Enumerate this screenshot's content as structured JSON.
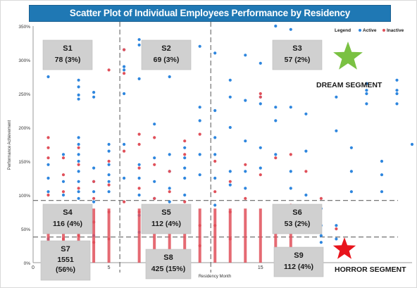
{
  "chart_data": {
    "type": "scatter",
    "title": "Scatter Plot of Individual Employees Performance by Residency",
    "xlabel": "Residency Month",
    "ylabel": "Performance Achievement",
    "xlim": [
      0,
      25
    ],
    "ylim": [
      0,
      3.5
    ],
    "x_ticks": [
      {
        "v": 0,
        "label": "0"
      },
      {
        "v": 5,
        "label": "5"
      },
      {
        "v": 15,
        "label": "15"
      }
    ],
    "y_ticks": [
      {
        "v": 0,
        "label": "0%"
      },
      {
        "v": 0.5,
        "label": "50%"
      },
      {
        "v": 1.0,
        "label": "100%"
      },
      {
        "v": 1.5,
        "label": "150%"
      },
      {
        "v": 2.0,
        "label": "200%"
      },
      {
        "v": 2.5,
        "label": "250%"
      },
      {
        "v": 3.0,
        "label": "300%"
      },
      {
        "v": 3.5,
        "label": "350%"
      }
    ],
    "legend": {
      "title": "Legend",
      "position": "top-right",
      "entries": [
        {
          "name": "Active",
          "color": "#2e86de"
        },
        {
          "name": "Inactive",
          "color": "#e0505a"
        }
      ]
    },
    "grid": false,
    "threshold_lines": {
      "x": [
        6,
        12
      ],
      "y": [
        0.38,
        0.92
      ]
    },
    "segments": [
      {
        "id": "S1",
        "label": "S1",
        "count": "78 (3%)"
      },
      {
        "id": "S2",
        "label": "S2",
        "count": "69 (3%)"
      },
      {
        "id": "S3",
        "label": "S3",
        "count": "57 (2%)"
      },
      {
        "id": "S4",
        "label": "S4",
        "count": "116 (4%)"
      },
      {
        "id": "S5",
        "label": "S5",
        "count": "112 (4%)"
      },
      {
        "id": "S6",
        "label": "S6",
        "count": "53 (2%)"
      },
      {
        "id": "S7",
        "label": "S7",
        "count": "1551 (56%)"
      },
      {
        "id": "S8",
        "label": "S8",
        "count": "425 (15%)"
      },
      {
        "id": "S9",
        "label": "S9",
        "count": "112 (4%)"
      }
    ],
    "annotations": [
      {
        "text": "DREAM SEGMENT",
        "marker": "star",
        "color": "#7ac142"
      },
      {
        "text": "HORROR SEGMENT",
        "marker": "star",
        "color": "#e8141c"
      }
    ],
    "series": [
      {
        "name": "Active",
        "color": "#2e86de",
        "x": [
          1,
          1,
          1,
          1,
          1,
          1,
          1,
          1,
          2,
          2,
          2,
          2,
          2,
          2,
          3,
          3,
          3,
          3,
          3,
          3,
          3,
          3,
          3,
          3,
          3,
          3,
          4,
          4,
          4,
          4,
          4,
          4,
          4,
          4,
          5,
          5,
          5,
          5,
          5,
          5,
          6,
          6,
          6,
          6,
          6,
          6,
          7,
          7,
          7,
          7,
          7,
          7,
          7,
          7,
          8,
          8,
          8,
          8,
          8,
          9,
          9,
          9,
          9,
          9,
          9,
          10,
          10,
          10,
          10,
          10,
          11,
          11,
          11,
          11,
          11,
          12,
          12,
          12,
          12,
          12,
          12,
          13,
          13,
          13,
          13,
          13,
          14,
          14,
          14,
          14,
          14,
          15,
          15,
          15,
          15,
          15,
          16,
          16,
          16,
          16,
          17,
          17,
          17,
          17,
          18,
          18,
          18,
          19,
          19,
          19,
          19,
          20,
          20,
          20,
          20,
          21,
          21,
          21,
          22,
          22,
          22,
          22,
          23,
          23,
          23,
          24,
          24,
          24,
          24,
          25
        ],
        "y": [
          2.75,
          1.45,
          1.25,
          1.05,
          0.8,
          0.6,
          0.35,
          0.2,
          1.6,
          1.2,
          1.0,
          0.7,
          0.45,
          0.25,
          2.7,
          2.6,
          2.48,
          2.42,
          1.85,
          1.75,
          1.6,
          1.5,
          1.35,
          1.2,
          1.05,
          0.95,
          2.52,
          2.45,
          1.4,
          1.2,
          1.05,
          0.9,
          0.6,
          0.4,
          1.75,
          1.65,
          1.45,
          1.3,
          1.2,
          1.05,
          3.15,
          2.9,
          2.85,
          2.5,
          1.75,
          1.25,
          3.3,
          3.22,
          2.72,
          1.45,
          1.25,
          1.0,
          0.7,
          0.45,
          2.05,
          1.55,
          1.2,
          0.95,
          0.7,
          2.75,
          1.6,
          1.35,
          1.1,
          0.9,
          0.6,
          1.7,
          1.55,
          1.4,
          1.25,
          1.0,
          3.2,
          2.3,
          2.1,
          1.6,
          1.3,
          3.1,
          2.25,
          1.85,
          1.6,
          1.25,
          0.85,
          2.7,
          2.45,
          2.0,
          1.35,
          1.15,
          3.07,
          2.4,
          1.8,
          1.35,
          1.1,
          2.95,
          2.45,
          2.35,
          1.7,
          1.4,
          3.5,
          2.3,
          2.1,
          1.6,
          3.45,
          2.3,
          1.35,
          1.1,
          2.2,
          1.65,
          1.0,
          0.8,
          0.55,
          0.4,
          0.3,
          2.45,
          1.95,
          0.55,
          0.35,
          1.7,
          1.35,
          1.05,
          2.65,
          2.55,
          2.5,
          2.35,
          1.5,
          1.3,
          1.05,
          2.7,
          2.55,
          2.5,
          2.35,
          1.75
        ]
      },
      {
        "name": "Inactive",
        "color": "#e0505a",
        "x": [
          1,
          1,
          1,
          1,
          1,
          1,
          1,
          2,
          2,
          2,
          2,
          2,
          2,
          3,
          3,
          3,
          3,
          3,
          4,
          4,
          4,
          4,
          5,
          5,
          5,
          5,
          5,
          6,
          6,
          6,
          6,
          7,
          7,
          7,
          7,
          7,
          8,
          8,
          8,
          8,
          9,
          9,
          9,
          10,
          10,
          10,
          11,
          11,
          11,
          12,
          12,
          12,
          13,
          13,
          13,
          14,
          14,
          15,
          15,
          15,
          16,
          16,
          17,
          17,
          18,
          18,
          19,
          20
        ],
        "y": [
          1.85,
          1.7,
          1.55,
          1.0,
          0.65,
          0.3,
          0.1,
          1.55,
          1.3,
          1.05,
          0.65,
          0.35,
          0.1,
          1.7,
          1.45,
          1.1,
          0.75,
          0.4,
          1.2,
          0.95,
          0.6,
          0.3,
          2.85,
          1.5,
          1.15,
          0.75,
          0.35,
          3.15,
          2.8,
          1.65,
          0.9,
          1.9,
          1.75,
          1.4,
          1.1,
          0.75,
          1.85,
          1.45,
          0.95,
          0.55,
          1.35,
          1.05,
          0.6,
          1.8,
          1.6,
          0.9,
          1.9,
          0.55,
          0.25,
          1.5,
          1.05,
          0.55,
          1.2,
          0.75,
          0.35,
          1.45,
          0.95,
          2.5,
          2.45,
          1.3,
          1.55,
          0.7,
          1.6,
          0.85,
          1.35,
          0.75,
          0.95,
          0.5
        ]
      }
    ]
  }
}
